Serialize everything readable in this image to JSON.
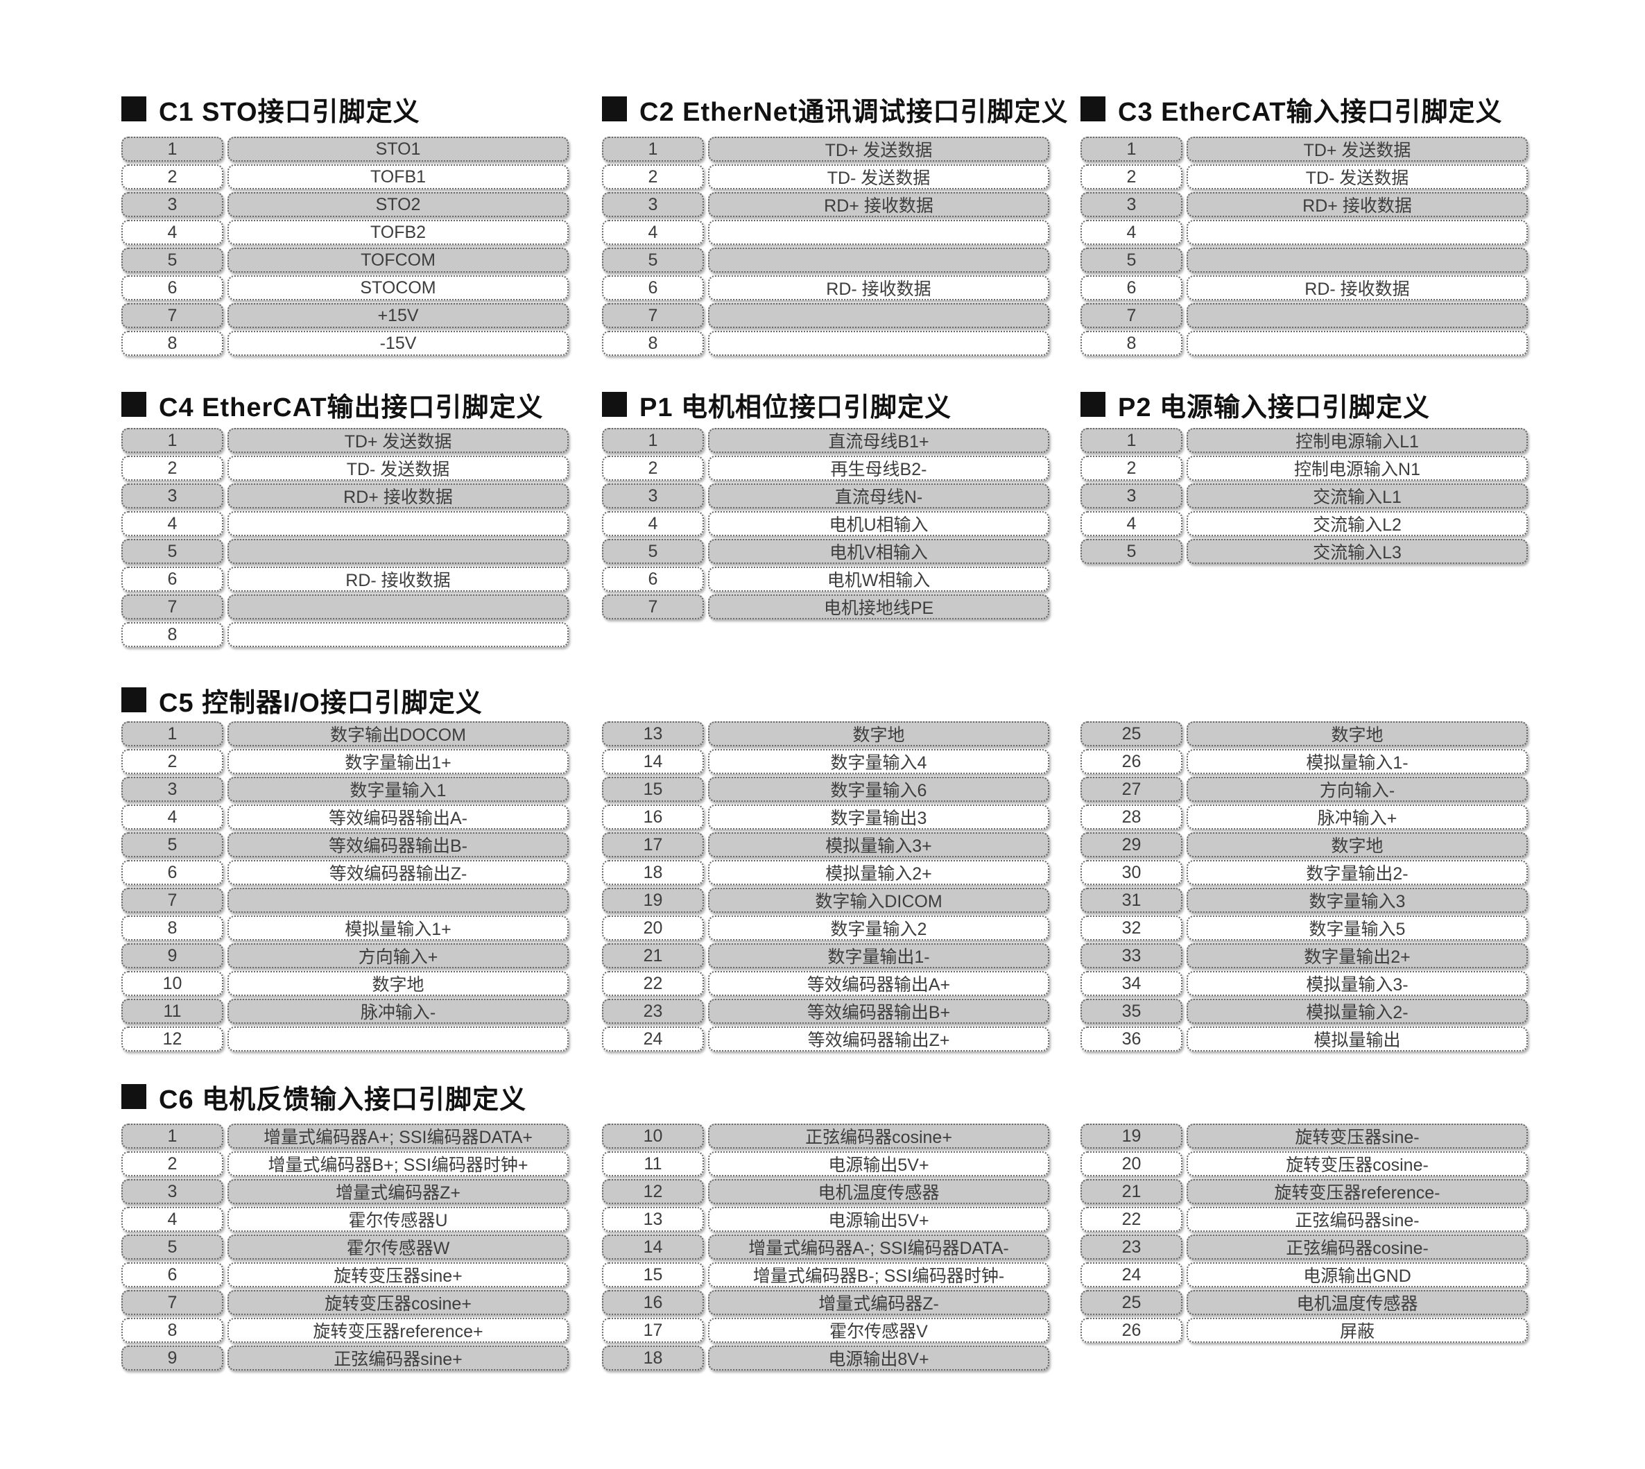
{
  "colors": {
    "row_gray": "#c9c9c9",
    "row_white": "#ffffff",
    "cell_border": "#666666",
    "cell_text": "#3d3d3d",
    "title_text": "#111111"
  },
  "sections": {
    "c1": {
      "title": "C1 STO接口引脚定义",
      "tables": [
        [
          [
            "1",
            "STO1"
          ],
          [
            "2",
            "TOFB1"
          ],
          [
            "3",
            "STO2"
          ],
          [
            "4",
            "TOFB2"
          ],
          [
            "5",
            "TOFCOM"
          ],
          [
            "6",
            "STOCOM"
          ],
          [
            "7",
            "+15V"
          ],
          [
            "8",
            "-15V"
          ]
        ]
      ]
    },
    "c2": {
      "title": "C2 EtherNet通讯调试接口引脚定义",
      "tables": [
        [
          [
            "1",
            "TD+ 发送数据"
          ],
          [
            "2",
            "TD- 发送数据"
          ],
          [
            "3",
            "RD+ 接收数据"
          ],
          [
            "4",
            ""
          ],
          [
            "5",
            ""
          ],
          [
            "6",
            "RD- 接收数据"
          ],
          [
            "7",
            ""
          ],
          [
            "8",
            ""
          ]
        ]
      ]
    },
    "c3": {
      "title": "C3 EtherCAT输入接口引脚定义",
      "tables": [
        [
          [
            "1",
            "TD+ 发送数据"
          ],
          [
            "2",
            "TD- 发送数据"
          ],
          [
            "3",
            "RD+ 接收数据"
          ],
          [
            "4",
            ""
          ],
          [
            "5",
            ""
          ],
          [
            "6",
            "RD- 接收数据"
          ],
          [
            "7",
            ""
          ],
          [
            "8",
            ""
          ]
        ]
      ]
    },
    "c4": {
      "title": "C4 EtherCAT输出接口引脚定义",
      "tables": [
        [
          [
            "1",
            "TD+ 发送数据"
          ],
          [
            "2",
            "TD- 发送数据"
          ],
          [
            "3",
            "RD+ 接收数据"
          ],
          [
            "4",
            ""
          ],
          [
            "5",
            ""
          ],
          [
            "6",
            "RD- 接收数据"
          ],
          [
            "7",
            ""
          ],
          [
            "8",
            ""
          ]
        ]
      ]
    },
    "p1": {
      "title": "P1 电机相位接口引脚定义",
      "tables": [
        [
          [
            "1",
            "直流母线B1+"
          ],
          [
            "2",
            "再生母线B2-"
          ],
          [
            "3",
            "直流母线N-"
          ],
          [
            "4",
            "电机U相输入"
          ],
          [
            "5",
            "电机V相输入"
          ],
          [
            "6",
            "电机W相输入"
          ],
          [
            "7",
            "电机接地线PE"
          ]
        ]
      ]
    },
    "p2": {
      "title": "P2 电源输入接口引脚定义",
      "tables": [
        [
          [
            "1",
            "控制电源输入L1"
          ],
          [
            "2",
            "控制电源输入N1"
          ],
          [
            "3",
            "交流输入L1"
          ],
          [
            "4",
            "交流输入L2"
          ],
          [
            "5",
            "交流输入L3"
          ]
        ]
      ]
    },
    "c5": {
      "title": "C5 控制器I/O接口引脚定义",
      "tables": [
        [
          [
            "1",
            "数字输出DOCOM"
          ],
          [
            "2",
            "数字量输出1+"
          ],
          [
            "3",
            "数字量输入1"
          ],
          [
            "4",
            "等效编码器输出A-"
          ],
          [
            "5",
            "等效编码器输出B-"
          ],
          [
            "6",
            "等效编码器输出Z-"
          ],
          [
            "7",
            ""
          ],
          [
            "8",
            "模拟量输入1+"
          ],
          [
            "9",
            "方向输入+"
          ],
          [
            "10",
            "数字地"
          ],
          [
            "11",
            "脉冲输入-"
          ],
          [
            "12",
            ""
          ]
        ],
        [
          [
            "13",
            "数字地"
          ],
          [
            "14",
            "数字量输入4"
          ],
          [
            "15",
            "数字量输入6"
          ],
          [
            "16",
            "数字量输出3"
          ],
          [
            "17",
            "模拟量输入3+"
          ],
          [
            "18",
            "模拟量输入2+"
          ],
          [
            "19",
            "数字输入DICOM"
          ],
          [
            "20",
            "数字量输入2"
          ],
          [
            "21",
            "数字量输出1-"
          ],
          [
            "22",
            "等效编码器输出A+"
          ],
          [
            "23",
            "等效编码器输出B+"
          ],
          [
            "24",
            "等效编码器输出Z+"
          ]
        ],
        [
          [
            "25",
            "数字地"
          ],
          [
            "26",
            "模拟量输入1-"
          ],
          [
            "27",
            "方向输入-"
          ],
          [
            "28",
            "脉冲输入+"
          ],
          [
            "29",
            "数字地"
          ],
          [
            "30",
            "数字量输出2-"
          ],
          [
            "31",
            "数字量输入3"
          ],
          [
            "32",
            "数字量输入5"
          ],
          [
            "33",
            "数字量输出2+"
          ],
          [
            "34",
            "模拟量输入3-"
          ],
          [
            "35",
            "模拟量输入2-"
          ],
          [
            "36",
            "模拟量输出"
          ]
        ]
      ]
    },
    "c6": {
      "title": "C6 电机反馈输入接口引脚定义",
      "tables": [
        [
          [
            "1",
            "增量式编码器A+; SSI编码器DATA+"
          ],
          [
            "2",
            "增量式编码器B+; SSI编码器时钟+"
          ],
          [
            "3",
            "增量式编码器Z+"
          ],
          [
            "4",
            "霍尔传感器U"
          ],
          [
            "5",
            "霍尔传感器W"
          ],
          [
            "6",
            "旋转变压器sine+"
          ],
          [
            "7",
            "旋转变压器cosine+"
          ],
          [
            "8",
            "旋转变压器reference+"
          ],
          [
            "9",
            "正弦编码器sine+"
          ]
        ],
        [
          [
            "10",
            "正弦编码器cosine+"
          ],
          [
            "11",
            "电源输出5V+"
          ],
          [
            "12",
            "电机温度传感器"
          ],
          [
            "13",
            "电源输出5V+"
          ],
          [
            "14",
            "增量式编码器A-; SSI编码器DATA-"
          ],
          [
            "15",
            "增量式编码器B-; SSI编码器时钟-"
          ],
          [
            "16",
            "增量式编码器Z-"
          ],
          [
            "17",
            "霍尔传感器V"
          ],
          [
            "18",
            "电源输出8V+"
          ]
        ],
        [
          [
            "19",
            "旋转变压器sine-"
          ],
          [
            "20",
            "旋转变压器cosine-"
          ],
          [
            "21",
            "旋转变压器reference-"
          ],
          [
            "22",
            "正弦编码器sine-"
          ],
          [
            "23",
            "正弦编码器cosine-"
          ],
          [
            "24",
            "电源输出GND"
          ],
          [
            "25",
            "电机温度传感器"
          ],
          [
            "26",
            "屏蔽"
          ]
        ]
      ]
    }
  }
}
